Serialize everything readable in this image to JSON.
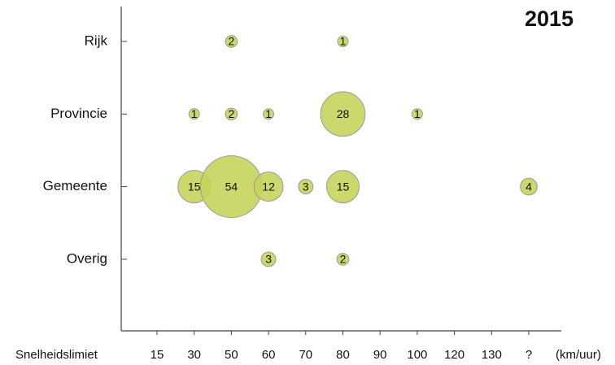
{
  "chart_data": {
    "type": "bubble",
    "title": "2015",
    "x_label": "Snelheidslimiet",
    "x_unit": "(km/uur)",
    "categories": [
      "15",
      "30",
      "50",
      "60",
      "70",
      "80",
      "90",
      "100",
      "120",
      "130",
      "?"
    ],
    "color": "#c6d35c",
    "series": [
      {
        "name": "Rijk",
        "values": [
          null,
          null,
          2,
          null,
          null,
          1,
          null,
          null,
          null,
          null,
          null
        ]
      },
      {
        "name": "Provincie",
        "values": [
          null,
          1,
          2,
          1,
          null,
          28,
          null,
          1,
          null,
          null,
          null
        ]
      },
      {
        "name": "Gemeente",
        "values": [
          null,
          15,
          54,
          12,
          3,
          15,
          null,
          null,
          null,
          null,
          4
        ]
      },
      {
        "name": "Overig",
        "values": [
          null,
          null,
          null,
          3,
          null,
          2,
          null,
          null,
          null,
          null,
          null
        ]
      }
    ]
  }
}
